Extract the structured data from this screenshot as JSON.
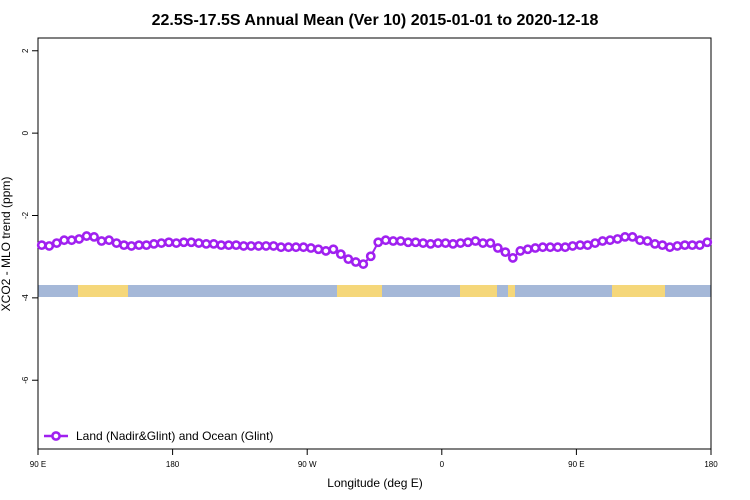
{
  "chart_data": {
    "type": "line",
    "title": "22.5S-17.5S Annual Mean (Ver 10)   2015-01-01 to 2020-12-18",
    "x_label": "Longitude (deg E)",
    "y_label": "XCO2 - MLO trend (ppm)",
    "xlim": [
      90,
      540
    ],
    "ylim": [
      -7.67,
      2.31
    ],
    "xticks": [
      {
        "value": 90,
        "label": "90 E"
      },
      180,
      {
        "value": 270,
        "label": "90 W"
      },
      {
        "value": 360,
        "label": "0"
      },
      {
        "value": 450,
        "label": "90 E"
      },
      {
        "value": 540,
        "label": "180"
      }
    ],
    "yticks": [
      2,
      0,
      -2,
      -4,
      -6
    ],
    "legend_position": "bottom-left",
    "x": [
      92.5,
      97.5,
      102.5,
      107.5,
      112.5,
      117.5,
      122.5,
      127.5,
      132.5,
      137.5,
      142.5,
      147.5,
      152.5,
      157.5,
      162.5,
      167.5,
      172.5,
      177.5,
      182.5,
      187.5,
      192.5,
      197.5,
      202.5,
      207.5,
      212.5,
      217.5,
      222.5,
      227.5,
      232.5,
      237.5,
      242.5,
      247.5,
      252.5,
      257.5,
      262.5,
      267.5,
      272.5,
      277.5,
      282.5,
      287.5,
      292.5,
      297.5,
      302.5,
      307.5,
      312.5,
      317.5,
      322.5,
      327.5,
      332.5,
      337.5,
      342.5,
      347.5,
      352.5,
      357.5,
      362.5,
      367.5,
      372.5,
      377.5,
      382.5,
      387.5,
      392.5,
      397.5,
      402.5,
      407.5,
      412.5,
      417.5,
      422.5,
      427.5,
      432.5,
      437.5,
      442.5,
      447.5,
      452.5,
      457.5,
      462.5,
      467.5,
      472.5,
      477.5,
      482.5,
      487.5,
      492.5,
      497.5,
      502.5,
      507.5,
      512.5,
      517.5,
      522.5,
      527.5,
      532.5,
      537.5
    ],
    "series": [
      {
        "name": "Land (Nadir&Glint) and Ocean (Glint)",
        "color": "#a020f0",
        "values": [
          -2.72,
          -2.74,
          -2.67,
          -2.6,
          -2.6,
          -2.57,
          -2.5,
          -2.52,
          -2.62,
          -2.6,
          -2.67,
          -2.72,
          -2.74,
          -2.72,
          -2.72,
          -2.69,
          -2.67,
          -2.65,
          -2.67,
          -2.65,
          -2.65,
          -2.67,
          -2.69,
          -2.69,
          -2.72,
          -2.72,
          -2.72,
          -2.74,
          -2.74,
          -2.74,
          -2.74,
          -2.74,
          -2.77,
          -2.77,
          -2.77,
          -2.77,
          -2.79,
          -2.82,
          -2.86,
          -2.82,
          -2.94,
          -3.06,
          -3.13,
          -3.18,
          -2.99,
          -2.65,
          -2.6,
          -2.62,
          -2.62,
          -2.65,
          -2.65,
          -2.67,
          -2.69,
          -2.67,
          -2.67,
          -2.69,
          -2.67,
          -2.65,
          -2.62,
          -2.67,
          -2.67,
          -2.79,
          -2.89,
          -3.03,
          -2.86,
          -2.82,
          -2.79,
          -2.77,
          -2.77,
          -2.77,
          -2.77,
          -2.74,
          -2.72,
          -2.72,
          -2.67,
          -2.62,
          -2.6,
          -2.57,
          -2.52,
          -2.52,
          -2.6,
          -2.62,
          -2.69,
          -2.72,
          -2.77,
          -2.74,
          -2.72,
          -2.72,
          -2.72,
          -2.65
        ]
      }
    ]
  }
}
